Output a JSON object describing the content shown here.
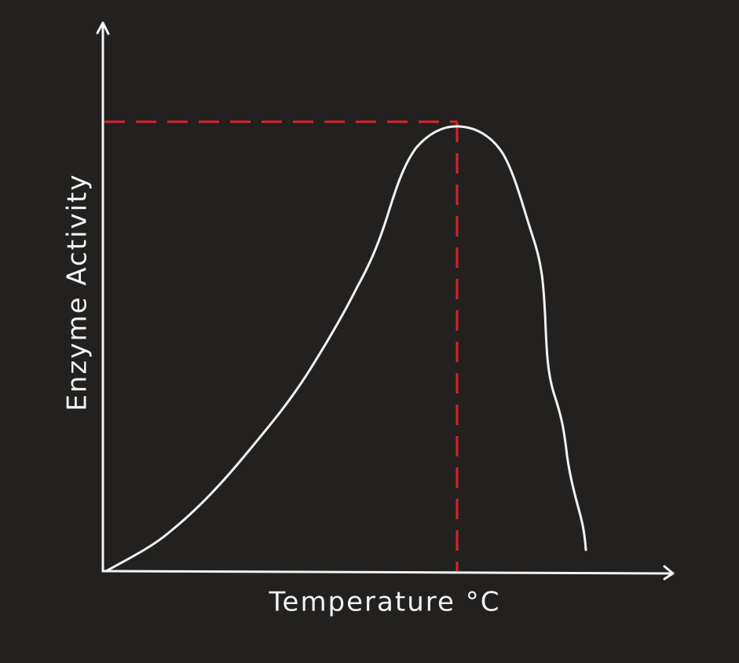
{
  "x_axis": {
    "label": "Temperature °C"
  },
  "y_axis": {
    "label": "Enzyme Activity"
  }
}
